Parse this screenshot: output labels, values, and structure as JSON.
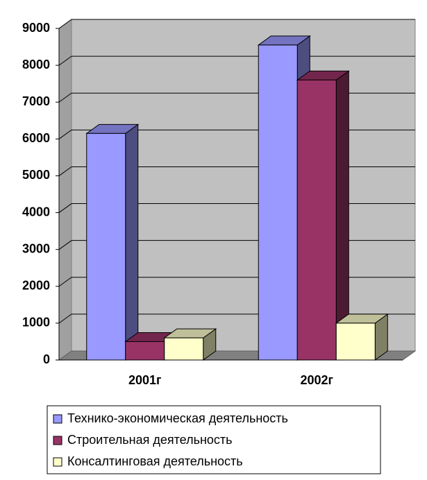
{
  "chart_data": {
    "type": "bar",
    "categories": [
      "2001г",
      "2002г"
    ],
    "series": [
      {
        "name": "Технико-экономическая деятельность",
        "color": "#9999ff",
        "values": [
          6150,
          8550
        ]
      },
      {
        "name": "Строительная деятельность",
        "color": "#993366",
        "values": [
          500,
          7600
        ]
      },
      {
        "name": "Консалтинговая деятельность",
        "color": "#ffffcc",
        "values": [
          600,
          1000
        ]
      }
    ],
    "ylim": [
      0,
      9000
    ],
    "yticks": [
      0,
      1000,
      2000,
      3000,
      4000,
      5000,
      6000,
      7000,
      8000,
      9000
    ],
    "grid": true,
    "legend": "bottom"
  }
}
